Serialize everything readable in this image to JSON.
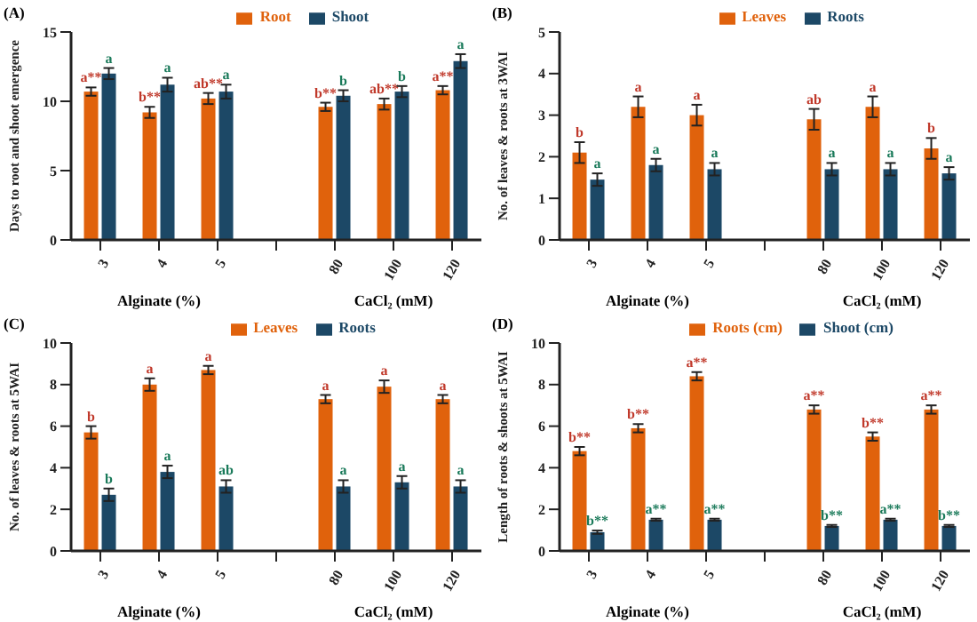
{
  "chart_data": [
    {
      "type": "bar",
      "title": "(A)",
      "ylabel": "Days to root and shoot emergence",
      "categories": [
        "3",
        "4",
        "5",
        null,
        "80",
        "100",
        "120"
      ],
      "legend": "top",
      "ylim": [
        0,
        15
      ],
      "yticks": [
        0,
        5,
        10,
        15
      ],
      "annotations": [
        "Alginate (%)",
        "CaCl₂ (mM)"
      ],
      "series": [
        {
          "name": "Root",
          "color": "#e0620c",
          "values": [
            10.7,
            9.2,
            10.2,
            null,
            9.6,
            9.8,
            10.8
          ],
          "errors": [
            0.3,
            0.4,
            0.4,
            null,
            0.3,
            0.4,
            0.3
          ],
          "value_labels": [
            "a**",
            "b**",
            "ab**",
            null,
            "b**",
            "ab**",
            "a**"
          ]
        },
        {
          "name": "Shoot",
          "color": "#1c4866",
          "values": [
            12.0,
            11.2,
            10.7,
            null,
            10.4,
            10.7,
            12.9
          ],
          "errors": [
            0.4,
            0.5,
            0.5,
            null,
            0.4,
            0.4,
            0.5
          ],
          "value_labels": [
            "a",
            "a",
            "a",
            null,
            "b",
            "b",
            "a"
          ]
        }
      ]
    },
    {
      "type": "bar",
      "title": "(B)",
      "ylabel": "No. of leaves & roots at 3WAI",
      "categories": [
        "3",
        "4",
        "5",
        null,
        "80",
        "100",
        "120"
      ],
      "legend": "top",
      "ylim": [
        0,
        5
      ],
      "yticks": [
        0,
        1,
        2,
        3,
        4,
        5
      ],
      "annotations": [
        "Alginate (%)",
        "CaCl₂ (mM)"
      ],
      "series": [
        {
          "name": "Leaves",
          "color": "#e0620c",
          "values": [
            2.1,
            3.2,
            3.0,
            null,
            2.9,
            3.2,
            2.2
          ],
          "errors": [
            0.25,
            0.25,
            0.25,
            null,
            0.25,
            0.25,
            0.25
          ],
          "value_labels": [
            "b",
            "a",
            "a",
            null,
            "ab",
            "a",
            "b"
          ]
        },
        {
          "name": "Roots",
          "color": "#1c4866",
          "values": [
            1.45,
            1.8,
            1.7,
            null,
            1.7,
            1.7,
            1.6
          ],
          "errors": [
            0.15,
            0.15,
            0.15,
            null,
            0.15,
            0.15,
            0.15
          ],
          "value_labels": [
            "a",
            "a",
            "a",
            null,
            "a",
            "a",
            "a"
          ]
        }
      ]
    },
    {
      "type": "bar",
      "title": "(C)",
      "ylabel": "No. of leaves & roots at 5WAI",
      "categories": [
        "3",
        "4",
        "5",
        null,
        "80",
        "100",
        "120"
      ],
      "legend": "top",
      "ylim": [
        0,
        10
      ],
      "yticks": [
        0,
        2,
        4,
        6,
        8,
        10
      ],
      "annotations": [
        "Alginate (%)",
        "CaCl₂ (mM)"
      ],
      "series": [
        {
          "name": "Leaves",
          "color": "#e0620c",
          "values": [
            5.7,
            8.0,
            8.7,
            null,
            7.3,
            7.9,
            7.3
          ],
          "errors": [
            0.3,
            0.3,
            0.2,
            null,
            0.2,
            0.3,
            0.2
          ],
          "value_labels": [
            "b",
            "a",
            "a",
            null,
            "a",
            "a",
            "a"
          ]
        },
        {
          "name": "Roots",
          "color": "#1c4866",
          "values": [
            2.7,
            3.8,
            3.1,
            null,
            3.1,
            3.3,
            3.1
          ],
          "errors": [
            0.3,
            0.3,
            0.3,
            null,
            0.3,
            0.3,
            0.3
          ],
          "value_labels": [
            "b",
            "a",
            "ab",
            null,
            "a",
            "a",
            "a"
          ]
        }
      ]
    },
    {
      "type": "bar",
      "title": "(D)",
      "ylabel": "Length of roots & shoots at 5WAI",
      "categories": [
        "3",
        "4",
        "5",
        null,
        "80",
        "100",
        "120"
      ],
      "legend": "top",
      "ylim": [
        0,
        10
      ],
      "yticks": [
        0,
        2,
        4,
        6,
        8,
        10
      ],
      "annotations": [
        "Alginate (%)",
        "CaCl₂ (mM)"
      ],
      "series": [
        {
          "name": "Roots (cm)",
          "color": "#e0620c",
          "values": [
            4.8,
            5.9,
            8.4,
            null,
            6.8,
            5.5,
            6.8
          ],
          "errors": [
            0.2,
            0.2,
            0.2,
            null,
            0.2,
            0.2,
            0.2
          ],
          "value_labels": [
            "b**",
            "b**",
            "a**",
            null,
            "a**",
            "b**",
            "a**"
          ]
        },
        {
          "name": "Shoot (cm)",
          "color": "#1c4866",
          "values": [
            0.9,
            1.5,
            1.5,
            null,
            1.2,
            1.5,
            1.2
          ],
          "errors": [
            0.08,
            0.05,
            0.05,
            null,
            0.05,
            0.05,
            0.05
          ],
          "value_labels": [
            "b**",
            "a**",
            "a**",
            null,
            "b**",
            "a**",
            "b**"
          ]
        }
      ]
    }
  ]
}
